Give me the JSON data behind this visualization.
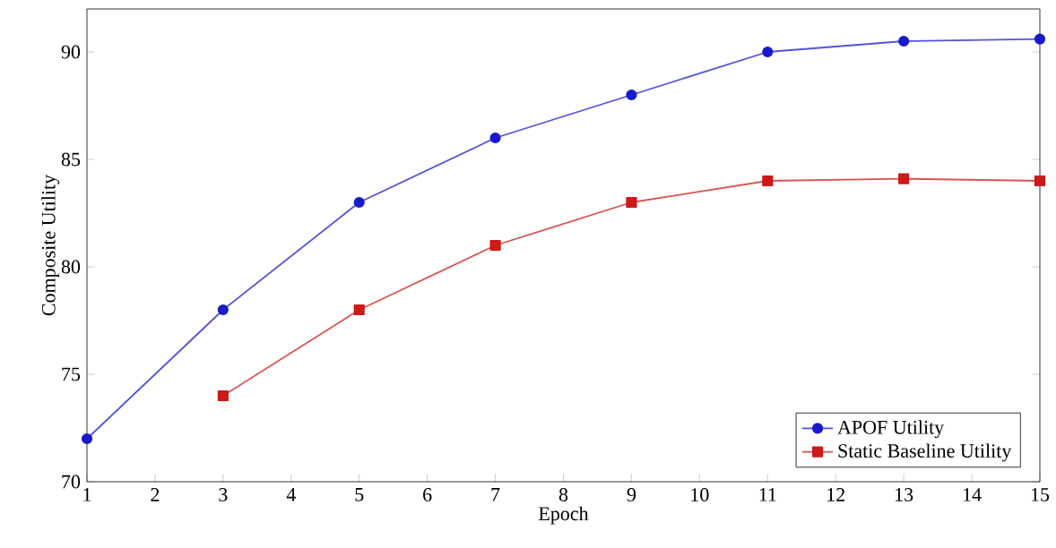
{
  "chart_data": {
    "type": "line",
    "xlabel": "Epoch",
    "ylabel": "Composite Utility",
    "x": [
      1,
      3,
      5,
      7,
      9,
      11,
      13,
      15
    ],
    "series": [
      {
        "name": "APOF Utility",
        "color": "#1a1acc",
        "marker": "circle",
        "values": [
          72,
          78,
          83,
          86,
          88,
          90,
          90.5,
          90.6
        ]
      },
      {
        "name": "Static Baseline Utility",
        "color": "#cc1a1a",
        "marker": "square",
        "values": [
          null,
          74,
          78,
          81,
          83,
          84,
          84.1,
          84
        ]
      }
    ],
    "xlim": [
      1,
      15
    ],
    "ylim": [
      70,
      92
    ],
    "xticks": [
      1,
      2,
      3,
      4,
      5,
      6,
      7,
      8,
      9,
      10,
      11,
      12,
      13,
      14,
      15
    ],
    "yticks": [
      70,
      75,
      80,
      85,
      90
    ],
    "grid": false,
    "legend": "bottom right"
  }
}
